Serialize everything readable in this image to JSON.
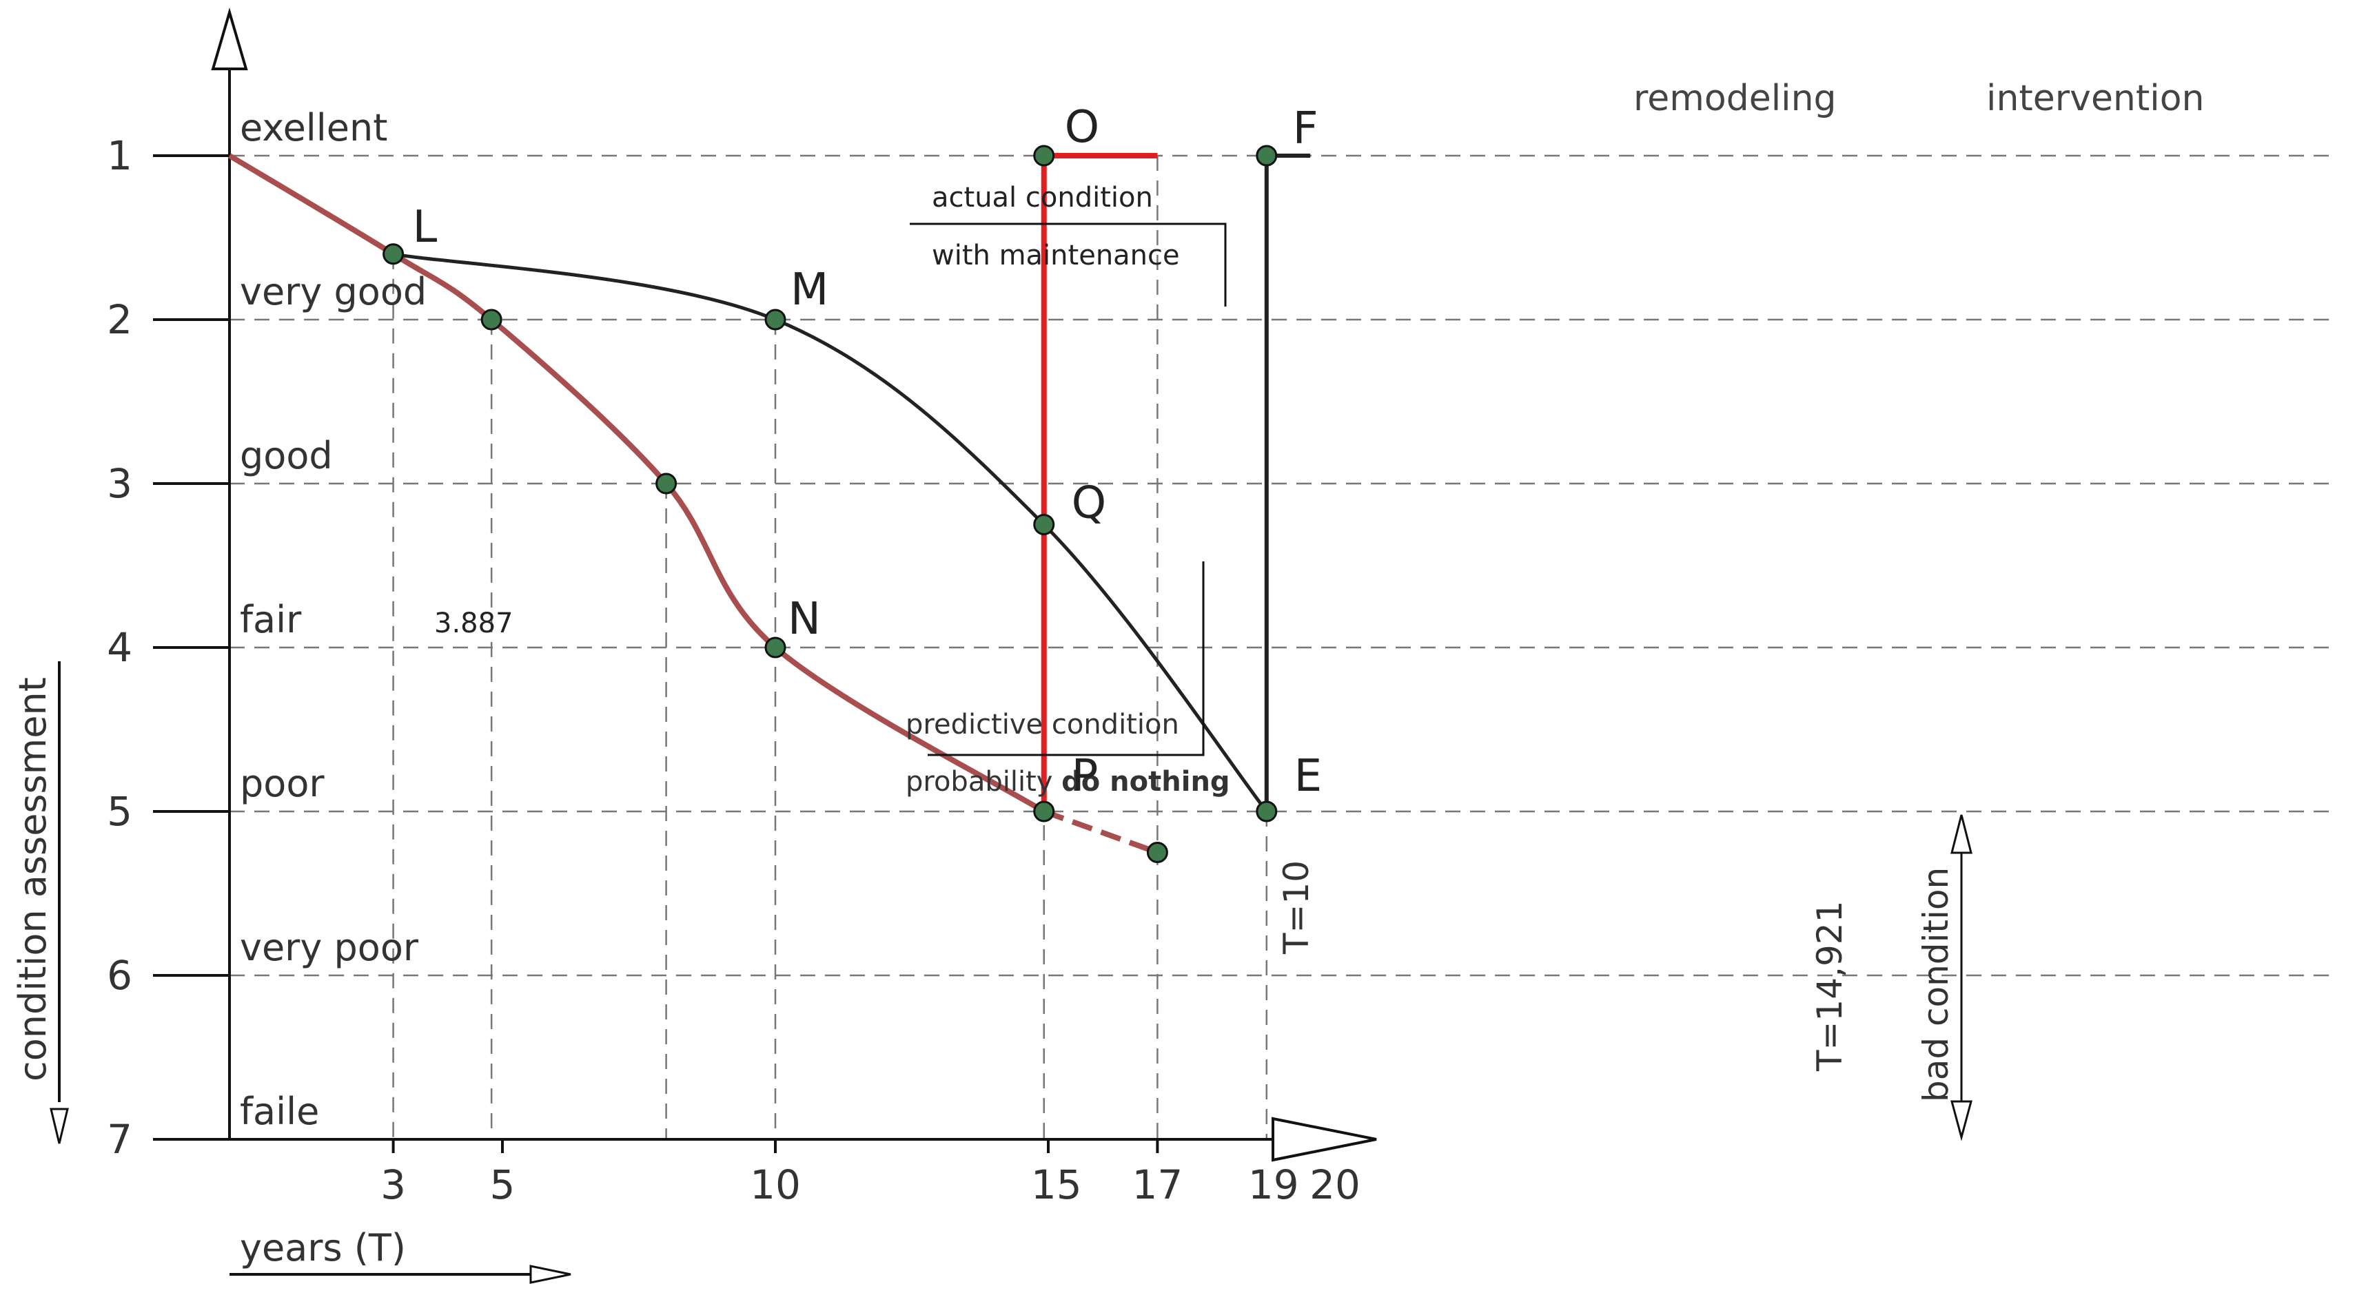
{
  "chart_data": {
    "type": "line",
    "xlabel": "years (T)",
    "ylabel": "condition assessment",
    "xlim": [
      0,
      20
    ],
    "ylim": [
      1,
      7
    ],
    "y_inverted": true,
    "grid": "dashed",
    "x_ticks": [
      3,
      5,
      10,
      15,
      17,
      19,
      20
    ],
    "y_ticks": [
      1,
      2,
      3,
      4,
      5,
      6,
      7
    ],
    "condition_levels": [
      {
        "value": 1,
        "label": "exellent"
      },
      {
        "value": 2,
        "label": "very good"
      },
      {
        "value": 3,
        "label": "good"
      },
      {
        "value": 4,
        "label": "fair"
      },
      {
        "value": 5,
        "label": "poor"
      },
      {
        "value": 6,
        "label": "very poor"
      },
      {
        "value": 7,
        "label": "faile"
      }
    ],
    "series": [
      {
        "name": "predictive condition probability do nothing",
        "color": "#a94e4e",
        "points": [
          [
            0,
            1
          ],
          [
            3,
            1.6
          ],
          [
            4.8,
            2
          ],
          [
            8,
            3
          ],
          [
            10,
            4
          ],
          [
            14.921,
            5
          ]
        ],
        "dashed_extension": [
          [
            14.921,
            5
          ],
          [
            17,
            5.25
          ]
        ]
      },
      {
        "name": "actual condition with maintenance",
        "color": "#222222",
        "points": [
          [
            3,
            1.6
          ],
          [
            10,
            2
          ],
          [
            14.921,
            3.25
          ],
          [
            19,
            5
          ]
        ]
      },
      {
        "name": "remodeling",
        "color": "#e02020",
        "points": [
          [
            14.921,
            5
          ],
          [
            14.921,
            1
          ],
          [
            17,
            1
          ]
        ]
      },
      {
        "name": "intervention",
        "color": "#222222",
        "points": [
          [
            19,
            5
          ],
          [
            19,
            1
          ],
          [
            19.8,
            1
          ]
        ]
      }
    ],
    "labeled_points": [
      {
        "label": "L",
        "x": 3,
        "y": 1.6
      },
      {
        "label": "M",
        "x": 10,
        "y": 2
      },
      {
        "label": "N",
        "x": 10,
        "y": 4
      },
      {
        "label": "O",
        "x": 14.921,
        "y": 1
      },
      {
        "label": "P",
        "x": 14.921,
        "y": 5
      },
      {
        "label": "Q",
        "x": 14.921,
        "y": 3.25
      },
      {
        "label": "E",
        "x": 19,
        "y": 5
      },
      {
        "label": "F",
        "x": 19,
        "y": 1
      }
    ],
    "unlabeled_points": [
      {
        "x": 4.8,
        "y": 2
      },
      {
        "x": 8,
        "y": 3
      },
      {
        "x": 17,
        "y": 5.25
      }
    ],
    "annotations": {
      "value_3887": "3.887",
      "t10": "T=10",
      "t14921": "T=14,921",
      "bad_condition": "bad condition",
      "remodeling": "remodeling",
      "intervention": "intervention",
      "actual_line1": "actual condition",
      "actual_line2": "with maintenance",
      "pred_line1": "predictive condition",
      "pred_line2_prefix": "probability ",
      "pred_line2_bold": "do nothing"
    }
  }
}
